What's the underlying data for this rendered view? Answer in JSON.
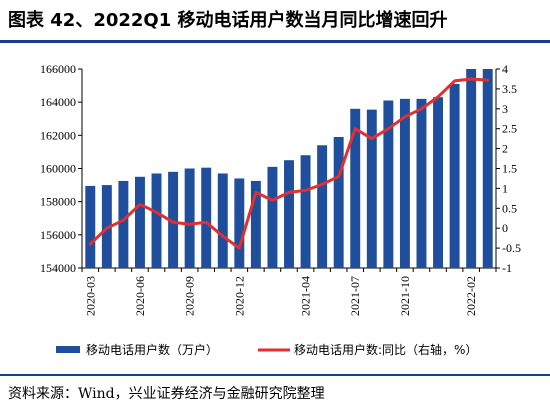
{
  "title": "图表 42、2022Q1 移动电话用户数当月同比增速回升",
  "source": "资料来源：Wind，兴业证券经济与金融研究院整理",
  "colors": {
    "bar": "#1f4e9c",
    "line": "#e03030",
    "rule": "#1f3c88"
  },
  "chart_data": {
    "type": "bar",
    "x": [
      "2020-03",
      "2020-04",
      "2020-05",
      "2020-06",
      "2020-07",
      "2020-08",
      "2020-09",
      "2020-10",
      "2020-11",
      "2020-12",
      "2021-01",
      "2021-02",
      "2021-03",
      "2021-04",
      "2021-05",
      "2021-06",
      "2021-07",
      "2021-08",
      "2021-09",
      "2021-10",
      "2021-11",
      "2021-12",
      "2022-01",
      "2022-02",
      "2022-03"
    ],
    "x_tick_labels": [
      "2020-03",
      "2020-06",
      "2020-09",
      "2020-12",
      "2021-04",
      "2021-07",
      "2021-10",
      "2022-02"
    ],
    "x_tick_indices": [
      0,
      3,
      6,
      9,
      13,
      16,
      19,
      23
    ],
    "series": [
      {
        "name": "移动电话用户数（万户）",
        "type": "bar",
        "axis": "left",
        "values": [
          158950,
          159000,
          159250,
          159500,
          159700,
          159800,
          160000,
          160050,
          159700,
          159400,
          159250,
          160100,
          160500,
          160800,
          161400,
          161900,
          163600,
          163550,
          164100,
          164200,
          164200,
          164300,
          165100,
          166000,
          166500
        ]
      },
      {
        "name": "移动电话用户数:同比（右轴，%）",
        "type": "line",
        "axis": "right",
        "values": [
          -0.4,
          0.0,
          0.2,
          0.6,
          0.4,
          0.15,
          0.1,
          0.15,
          -0.2,
          -0.5,
          0.9,
          0.7,
          0.9,
          0.95,
          1.1,
          1.3,
          2.5,
          2.25,
          2.5,
          2.8,
          3.0,
          3.3,
          3.7,
          3.75,
          3.72
        ]
      }
    ],
    "y_left": {
      "min": 154000,
      "max": 166000,
      "ticks": [
        154000,
        156000,
        158000,
        160000,
        162000,
        164000,
        166000
      ]
    },
    "y_right": {
      "min": -1,
      "max": 4,
      "ticks": [
        "-1",
        "-0.5",
        "0",
        "0.5",
        "1",
        "1.5",
        "2",
        "2.5",
        "3",
        "3.5",
        "4"
      ]
    },
    "legend_position": "bottom"
  }
}
